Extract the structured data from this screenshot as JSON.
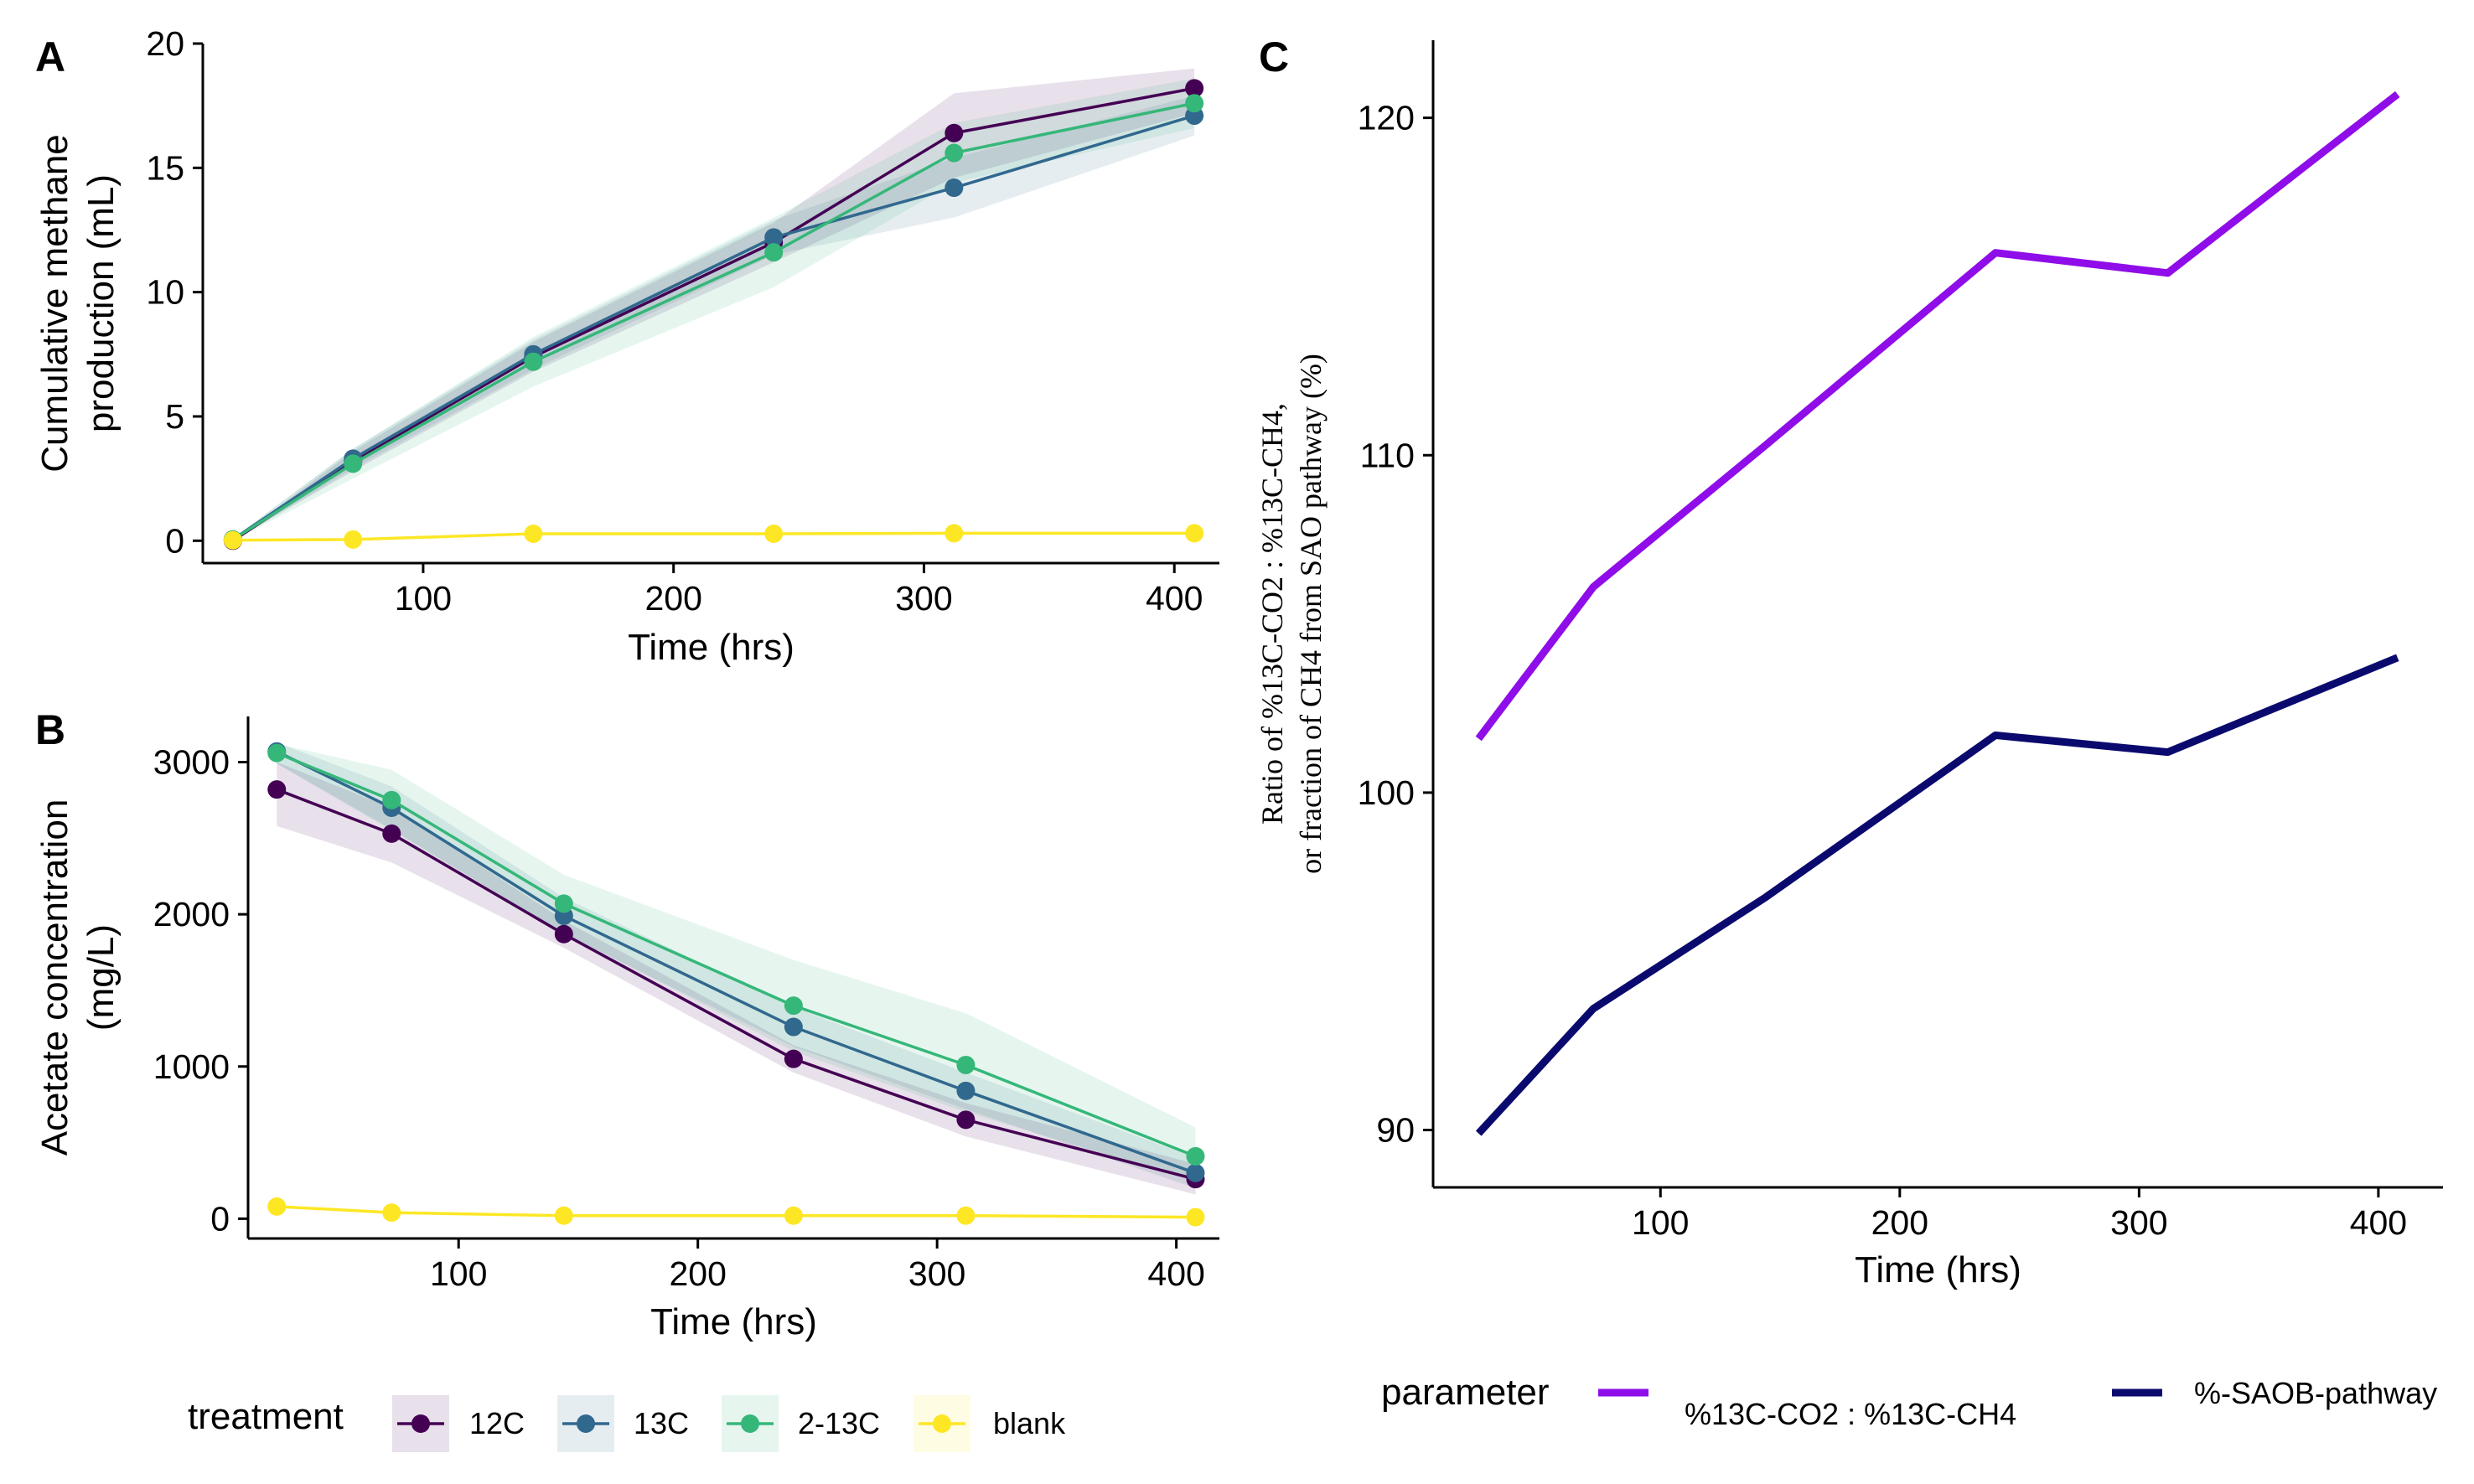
{
  "colors": {
    "12C": "#440154",
    "13C": "#31688e",
    "2-13C": "#35b779",
    "blank": "#fde725",
    "ratio": "#8f0de8",
    "saob": "#0a0a6e",
    "axis": "#000000"
  },
  "panels": {
    "A": {
      "letter": "A"
    },
    "B": {
      "letter": "B"
    },
    "C": {
      "letter": "C"
    }
  },
  "legend_treatment": {
    "title": "treatment",
    "items": [
      "12C",
      "13C",
      "2-13C",
      "blank"
    ]
  },
  "legend_parameter": {
    "title": "parameter",
    "items": [
      "%13C-CO2 : %13C-CH4",
      "%-SAOB-pathway"
    ]
  },
  "chart_data": [
    {
      "panel": "A",
      "type": "line",
      "xlabel": "Time (hrs)",
      "ylabel": [
        "Cumulative methane",
        "production (mL)"
      ],
      "xlim": [
        12,
        418
      ],
      "ylim": [
        -0.9,
        20
      ],
      "xticks": [
        100,
        200,
        300,
        400
      ],
      "yticks": [
        0,
        5,
        10,
        15,
        20
      ],
      "grid": false,
      "legend": "bottom",
      "series": [
        {
          "name": "12C",
          "x": [
            24,
            72,
            144,
            240,
            312,
            408
          ],
          "y": [
            0,
            3.2,
            7.4,
            12.0,
            16.4,
            18.2
          ],
          "lower": [
            0,
            2.8,
            6.8,
            11.2,
            14.6,
            17.2
          ],
          "upper": [
            0,
            3.6,
            8.0,
            12.8,
            18.0,
            19.0
          ]
        },
        {
          "name": "13C",
          "x": [
            24,
            72,
            144,
            240,
            312,
            408
          ],
          "y": [
            0.05,
            3.3,
            7.5,
            12.2,
            14.2,
            17.1
          ],
          "lower": [
            0,
            2.9,
            6.9,
            11.5,
            13.0,
            16.3
          ],
          "upper": [
            0.1,
            3.7,
            8.1,
            12.9,
            15.4,
            17.9
          ]
        },
        {
          "name": "2-13C",
          "x": [
            24,
            72,
            144,
            240,
            312,
            408
          ],
          "y": [
            0.05,
            3.1,
            7.2,
            11.6,
            15.6,
            17.6
          ],
          "lower": [
            0,
            2.5,
            6.2,
            10.2,
            14.4,
            16.6
          ],
          "upper": [
            0.1,
            3.7,
            8.2,
            13.0,
            16.8,
            18.6
          ]
        },
        {
          "name": "blank",
          "x": [
            24,
            72,
            144,
            240,
            312,
            408
          ],
          "y": [
            0.02,
            0.05,
            0.28,
            0.28,
            0.3,
            0.3
          ]
        }
      ]
    },
    {
      "panel": "B",
      "type": "line",
      "xlabel": "Time (hrs)",
      "ylabel": [
        "Acetate concentration",
        "(mg/L)"
      ],
      "xlim": [
        12,
        418
      ],
      "ylim": [
        -130,
        3300
      ],
      "xticks": [
        100,
        200,
        300,
        400
      ],
      "yticks": [
        0,
        1000,
        2000,
        3000
      ],
      "grid": false,
      "legend": "bottom",
      "series": [
        {
          "name": "12C",
          "x": [
            24,
            72,
            144,
            240,
            312,
            408
          ],
          "y": [
            2820,
            2530,
            1870,
            1050,
            650,
            260
          ],
          "lower": [
            2580,
            2340,
            1780,
            960,
            540,
            160
          ],
          "upper": [
            3000,
            2700,
            1960,
            1140,
            760,
            360
          ]
        },
        {
          "name": "13C",
          "x": [
            24,
            72,
            144,
            240,
            312,
            408
          ],
          "y": [
            3070,
            2700,
            1990,
            1260,
            840,
            300
          ],
          "lower": [
            2990,
            2560,
            1870,
            1130,
            720,
            200
          ],
          "upper": [
            3130,
            2840,
            2110,
            1390,
            960,
            400
          ]
        },
        {
          "name": "2-13C",
          "x": [
            24,
            72,
            144,
            240,
            312,
            408
          ],
          "y": [
            3060,
            2750,
            2070,
            1400,
            1010,
            410
          ],
          "lower": [
            2990,
            2550,
            1880,
            1100,
            700,
            250
          ],
          "upper": [
            3120,
            2950,
            2260,
            1700,
            1350,
            600
          ]
        },
        {
          "name": "blank",
          "x": [
            24,
            72,
            144,
            240,
            312,
            408
          ],
          "y": [
            80,
            40,
            20,
            20,
            20,
            10
          ]
        }
      ]
    },
    {
      "panel": "C",
      "type": "line",
      "xlabel": "Time (hrs)",
      "ylabel": [
        "Ratio of %13C-CO2 : %13C-CH4,",
        "or fraction of CH4 from SAO pathway (%)"
      ],
      "xlim": [
        5,
        427
      ],
      "ylim": [
        88.3,
        122.3
      ],
      "xticks": [
        100,
        200,
        300,
        400
      ],
      "yticks": [
        90,
        100,
        110,
        120
      ],
      "grid": false,
      "legend": "bottom",
      "series": [
        {
          "name": "%13C-CO2 : %13C-CH4",
          "x": [
            24,
            72,
            144,
            240,
            312,
            408
          ],
          "y": [
            101.6,
            106.1,
            110.3,
            116.0,
            115.4,
            120.7
          ]
        },
        {
          "name": "%-SAOB-pathway",
          "x": [
            24,
            72,
            144,
            240,
            312,
            408
          ],
          "y": [
            89.9,
            93.6,
            96.9,
            101.7,
            101.2,
            104.0
          ]
        }
      ]
    }
  ]
}
